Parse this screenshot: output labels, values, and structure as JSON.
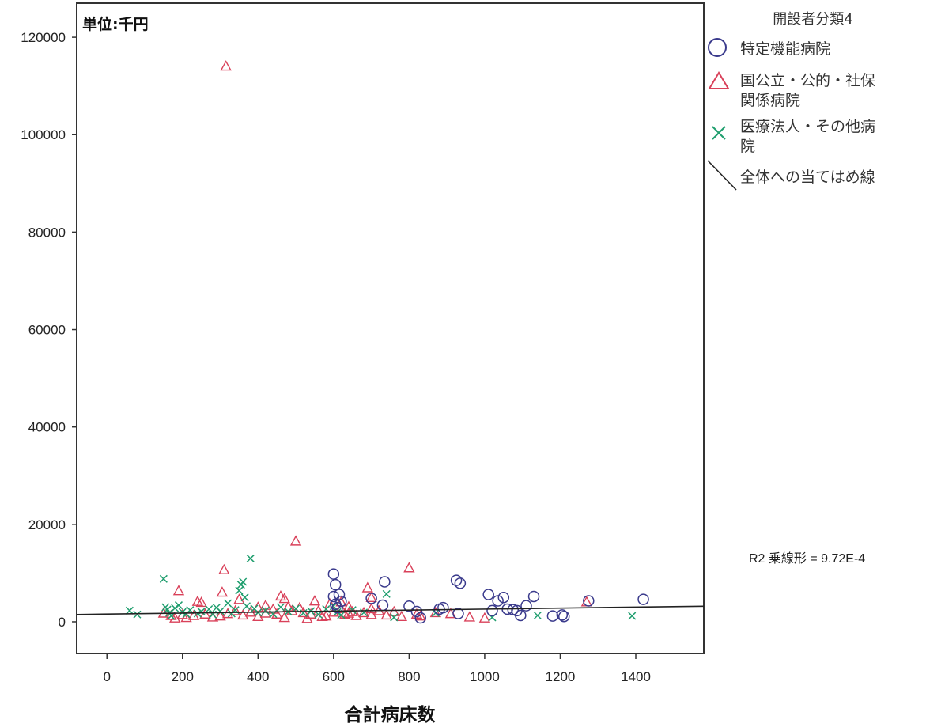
{
  "chart_data": {
    "type": "scatter",
    "unit_note": "単位:千円",
    "xlabel": "合計病床数",
    "ylabel": "",
    "xlim": [
      -80,
      1580
    ],
    "ylim": [
      -6500,
      127000
    ],
    "xticks": [
      0,
      200,
      400,
      600,
      800,
      1000,
      1200,
      1400
    ],
    "yticks": [
      0,
      20000,
      40000,
      60000,
      80000,
      100000,
      120000
    ],
    "grid": false,
    "legend_title": "開設者分類4",
    "legend_position": "right",
    "colors": {
      "circle": "#3a3a8c",
      "triangle": "#d9415a",
      "cross": "#1f9e6e",
      "fit": "#222222"
    },
    "series": [
      {
        "name": "特定機能病院",
        "legend_lines": [
          "特定機能病院"
        ],
        "marker": "circle",
        "points": [
          [
            600,
            9800
          ],
          [
            605,
            7600
          ],
          [
            600,
            5200
          ],
          [
            615,
            5600
          ],
          [
            620,
            4200
          ],
          [
            605,
            3600
          ],
          [
            610,
            2900
          ],
          [
            700,
            4800
          ],
          [
            730,
            3400
          ],
          [
            735,
            8200
          ],
          [
            800,
            3200
          ],
          [
            820,
            2100
          ],
          [
            830,
            800
          ],
          [
            880,
            2600
          ],
          [
            890,
            2900
          ],
          [
            925,
            8500
          ],
          [
            935,
            7900
          ],
          [
            930,
            1700
          ],
          [
            1010,
            5600
          ],
          [
            1020,
            2300
          ],
          [
            1035,
            4300
          ],
          [
            1050,
            5000
          ],
          [
            1060,
            2600
          ],
          [
            1075,
            2500
          ],
          [
            1085,
            2300
          ],
          [
            1095,
            1300
          ],
          [
            1110,
            3300
          ],
          [
            1130,
            5200
          ],
          [
            1180,
            1200
          ],
          [
            1205,
            1400
          ],
          [
            1210,
            1100
          ],
          [
            1275,
            4300
          ],
          [
            1420,
            4600
          ]
        ]
      },
      {
        "name": "国公立・公的・社保関係病院",
        "legend_lines": [
          "国公立・公的・社保",
          "関係病院"
        ],
        "marker": "triangle",
        "points": [
          [
            315,
            114000
          ],
          [
            500,
            16500
          ],
          [
            310,
            10600
          ],
          [
            800,
            11000
          ],
          [
            190,
            6300
          ],
          [
            305,
            6000
          ],
          [
            350,
            4500
          ],
          [
            460,
            5200
          ],
          [
            470,
            4700
          ],
          [
            690,
            6900
          ],
          [
            700,
            4900
          ],
          [
            240,
            4100
          ],
          [
            250,
            3900
          ],
          [
            620,
            4000
          ],
          [
            550,
            4200
          ],
          [
            590,
            3600
          ],
          [
            640,
            3000
          ],
          [
            700,
            2600
          ],
          [
            720,
            2200
          ],
          [
            760,
            2000
          ],
          [
            820,
            1500
          ],
          [
            830,
            1100
          ],
          [
            960,
            900
          ],
          [
            1000,
            700
          ],
          [
            1270,
            4000
          ],
          [
            870,
            1800
          ],
          [
            910,
            1600
          ],
          [
            150,
            1700
          ],
          [
            170,
            1200
          ],
          [
            180,
            700
          ],
          [
            200,
            1400
          ],
          [
            210,
            800
          ],
          [
            230,
            1200
          ],
          [
            260,
            1500
          ],
          [
            280,
            900
          ],
          [
            300,
            1100
          ],
          [
            320,
            1600
          ],
          [
            340,
            2200
          ],
          [
            360,
            1300
          ],
          [
            380,
            1900
          ],
          [
            400,
            1000
          ],
          [
            420,
            1700
          ],
          [
            440,
            2500
          ],
          [
            450,
            1500
          ],
          [
            480,
            3000
          ],
          [
            490,
            2200
          ],
          [
            510,
            2800
          ],
          [
            520,
            1800
          ],
          [
            540,
            1500
          ],
          [
            560,
            2200
          ],
          [
            580,
            1100
          ],
          [
            600,
            1900
          ],
          [
            620,
            2600
          ],
          [
            630,
            1500
          ],
          [
            650,
            2000
          ],
          [
            660,
            1200
          ],
          [
            680,
            1800
          ],
          [
            700,
            1400
          ],
          [
            740,
            1300
          ],
          [
            780,
            1000
          ],
          [
            400,
            2900
          ],
          [
            420,
            3300
          ],
          [
            470,
            800
          ],
          [
            530,
            600
          ],
          [
            570,
            1000
          ],
          [
            640,
            1700
          ]
        ]
      },
      {
        "name": "医療法人・その他病院",
        "legend_lines": [
          "医療法人・その他病",
          "院"
        ],
        "marker": "cross",
        "points": [
          [
            60,
            2300
          ],
          [
            80,
            1500
          ],
          [
            150,
            8800
          ],
          [
            155,
            3000
          ],
          [
            160,
            2500
          ],
          [
            165,
            1800
          ],
          [
            170,
            1200
          ],
          [
            180,
            2800
          ],
          [
            190,
            3400
          ],
          [
            200,
            2000
          ],
          [
            210,
            1600
          ],
          [
            220,
            2400
          ],
          [
            240,
            1700
          ],
          [
            250,
            2100
          ],
          [
            270,
            2600
          ],
          [
            280,
            1500
          ],
          [
            290,
            2900
          ],
          [
            300,
            2200
          ],
          [
            320,
            3800
          ],
          [
            330,
            1700
          ],
          [
            340,
            2400
          ],
          [
            350,
            6400
          ],
          [
            355,
            7600
          ],
          [
            360,
            8200
          ],
          [
            365,
            5000
          ],
          [
            370,
            3200
          ],
          [
            380,
            13000
          ],
          [
            390,
            2700
          ],
          [
            400,
            1900
          ],
          [
            420,
            2300
          ],
          [
            440,
            1600
          ],
          [
            460,
            3000
          ],
          [
            480,
            2100
          ],
          [
            500,
            2700
          ],
          [
            520,
            1800
          ],
          [
            540,
            2200
          ],
          [
            560,
            1500
          ],
          [
            580,
            2600
          ],
          [
            600,
            3200
          ],
          [
            610,
            2000
          ],
          [
            620,
            1400
          ],
          [
            650,
            2400
          ],
          [
            680,
            1900
          ],
          [
            740,
            5700
          ],
          [
            760,
            900
          ],
          [
            870,
            1800
          ],
          [
            1020,
            900
          ],
          [
            1140,
            1300
          ],
          [
            1390,
            1200
          ]
        ]
      }
    ],
    "fit_line": {
      "name": "全体への当てはめ線",
      "legend_lines": [
        "全体への当てはめ線"
      ],
      "x": [
        -80,
        1580
      ],
      "y": [
        1500,
        3200
      ]
    },
    "annotation": "R2 乗線形 = 9.72E-4"
  }
}
